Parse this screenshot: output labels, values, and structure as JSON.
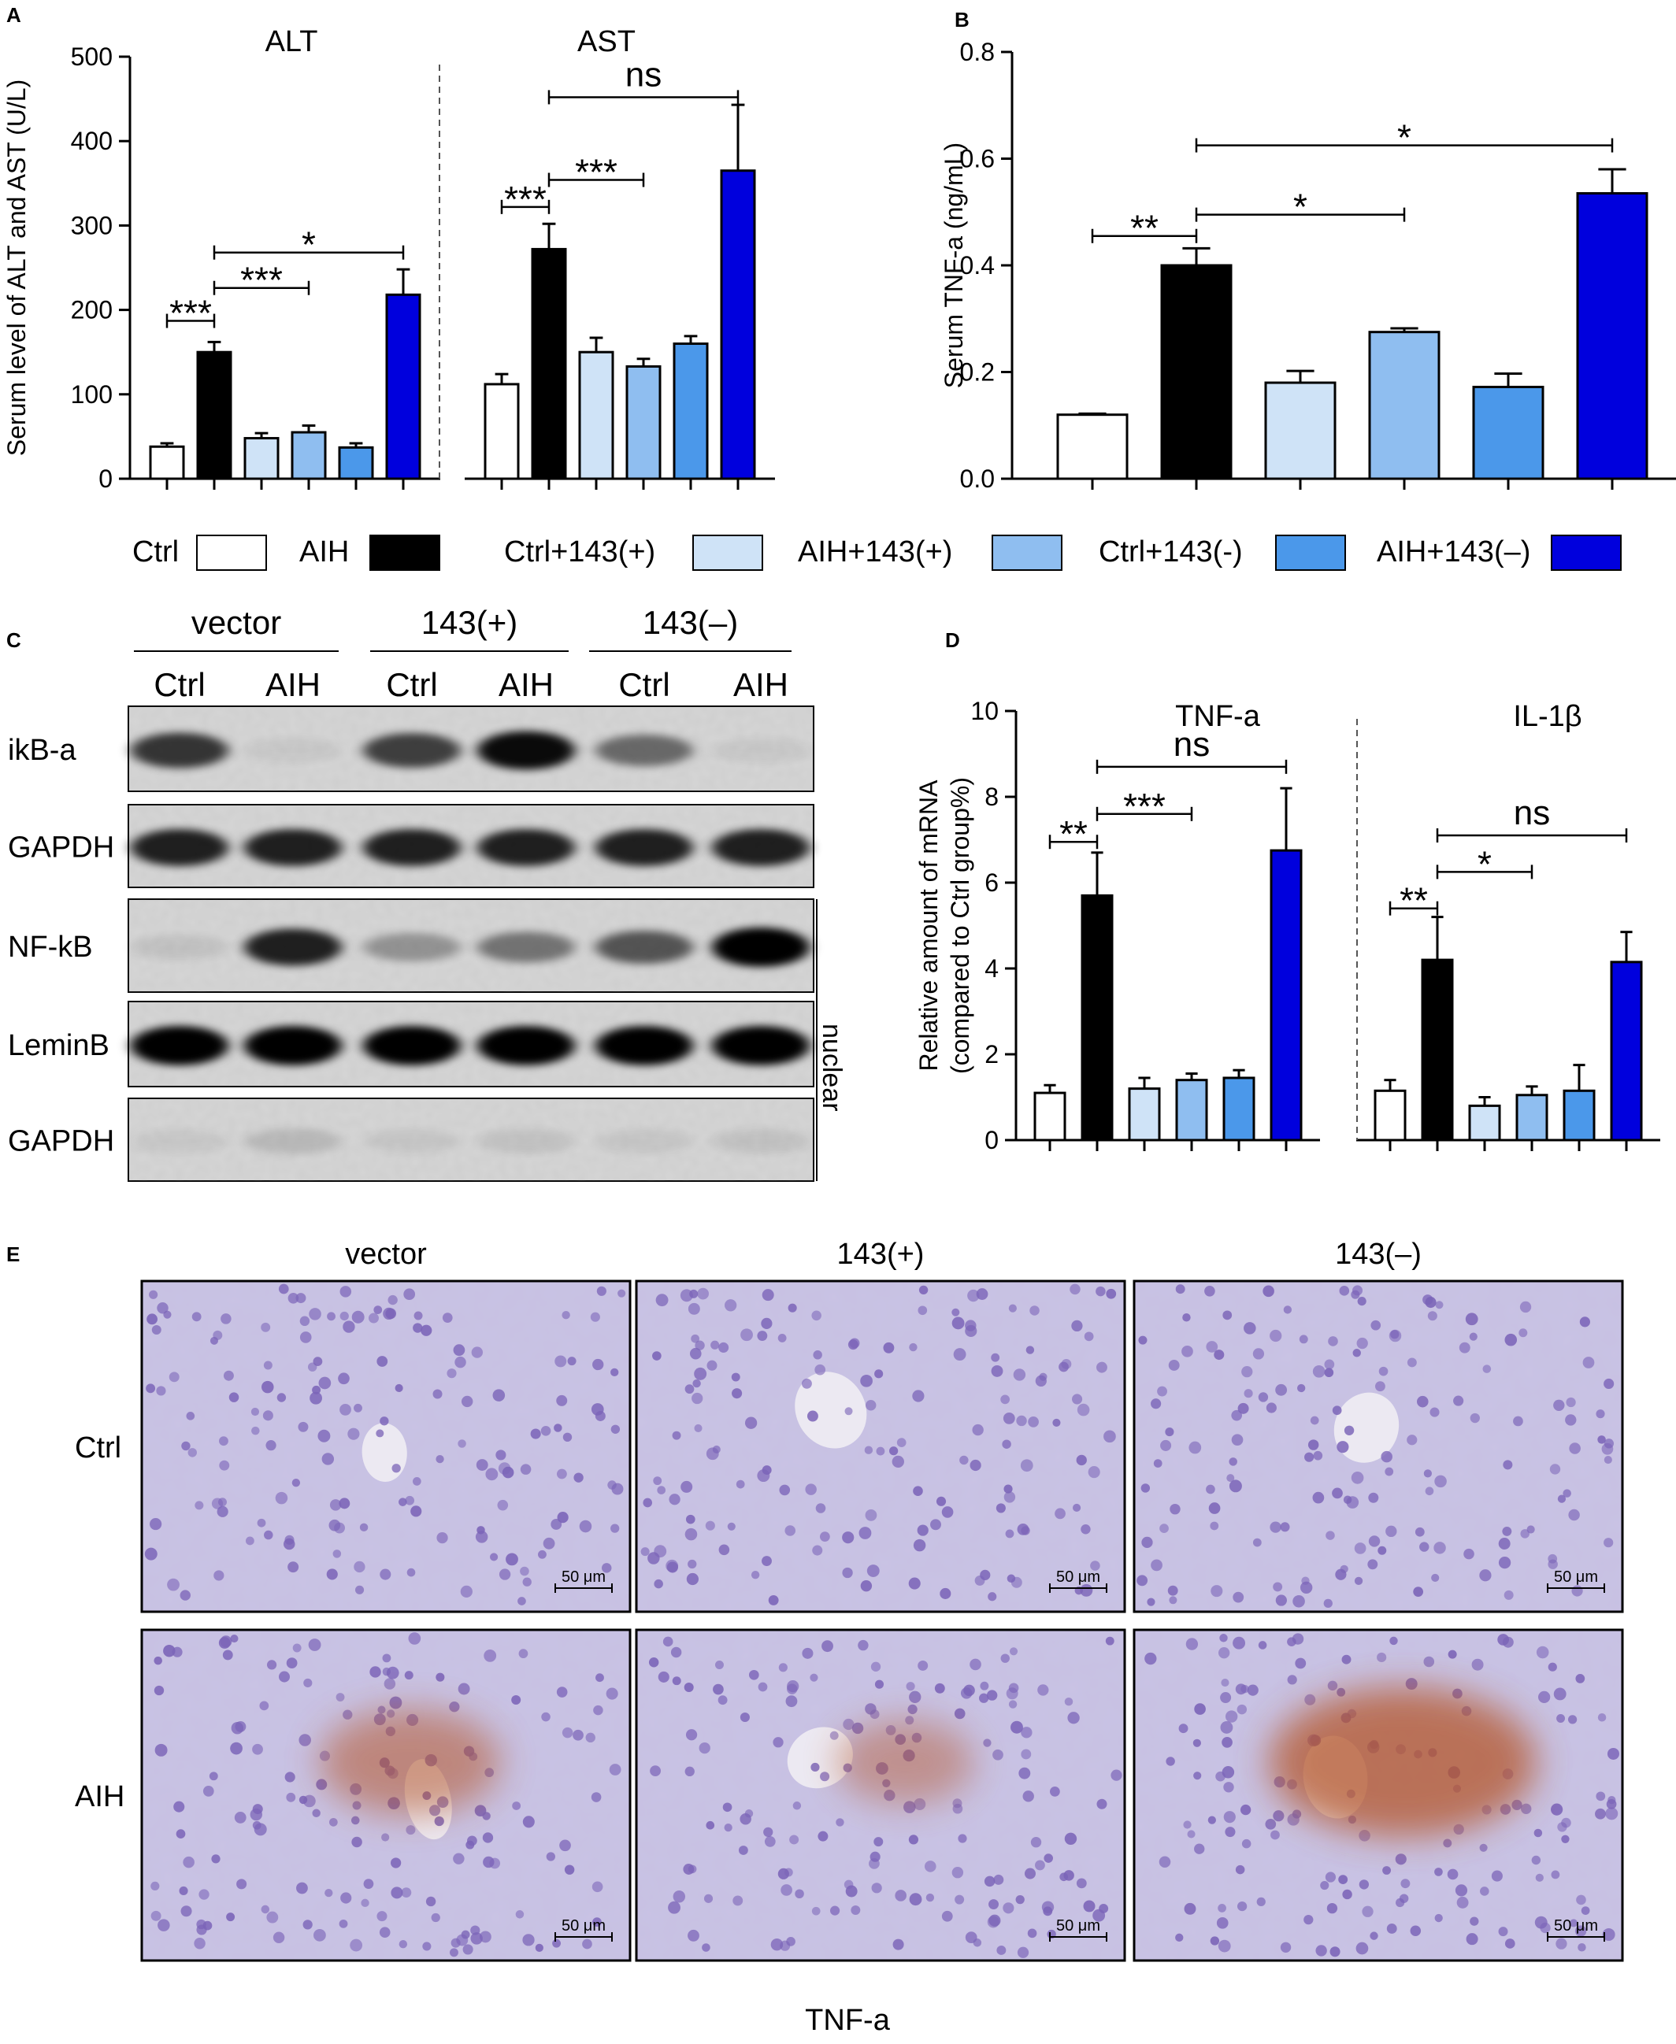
{
  "colors": {
    "ctrl": "#ffffff",
    "aih": "#000000",
    "ctrl143p": "#cfe3f7",
    "aih143p": "#8fbef0",
    "ctrl143m": "#4b98ea",
    "aih143m": "#0000dd",
    "tissue_bg": "#c9c3e4",
    "nucleus": "#7b64b8",
    "brown_stain": "#b5572a"
  },
  "panel_labels": {
    "a": "A",
    "b": "B",
    "c": "C",
    "d": "D",
    "e": "E"
  },
  "legend": [
    {
      "label": "Ctrl",
      "color": "#ffffff"
    },
    {
      "label": "AIH",
      "color": "#000000"
    },
    {
      "label": "Ctrl+143(+)",
      "color": "#cfe3f7"
    },
    {
      "label": "AIH+143(+)",
      "color": "#8fbef0"
    },
    {
      "label": "Ctrl+143(-)",
      "color": "#4b98ea"
    },
    {
      "label": "AIH+143(–)",
      "color": "#0000dd"
    }
  ],
  "chart_data": [
    {
      "id": "A",
      "type": "bar",
      "ylabel": "Serum level of ALT and AST (U/L)",
      "ylim": [
        0,
        500
      ],
      "yticks": [
        "0",
        "100",
        "200",
        "300",
        "400",
        "500"
      ],
      "groups": [
        {
          "title": "ALT",
          "values": [
            38,
            150,
            48,
            55,
            37,
            218
          ],
          "errors": [
            4,
            12,
            6,
            8,
            5,
            30
          ],
          "sig": [
            {
              "from": 0,
              "to": 1,
              "label": "***",
              "y": 187
            },
            {
              "from": 1,
              "to": 3,
              "label": "***",
              "y": 226
            },
            {
              "from": 1,
              "to": 5,
              "label": "*",
              "y": 268
            }
          ]
        },
        {
          "title": "AST",
          "values": [
            112,
            272,
            150,
            133,
            160,
            365
          ],
          "errors": [
            12,
            30,
            17,
            9,
            9,
            78
          ],
          "sig": [
            {
              "from": 0,
              "to": 1,
              "label": "***",
              "y": 322
            },
            {
              "from": 1,
              "to": 3,
              "label": "***",
              "y": 354
            },
            {
              "from": 1,
              "to": 5,
              "label": "ns",
              "y": 452
            }
          ]
        }
      ]
    },
    {
      "id": "B",
      "type": "bar",
      "ylabel": "Serum TNF-a (ng/mL)",
      "ylim": [
        0,
        0.8
      ],
      "yticks": [
        "0.0",
        "0.2",
        "0.4",
        "0.6",
        "0.8"
      ],
      "groups": [
        {
          "title": "",
          "values": [
            0.12,
            0.4,
            0.18,
            0.275,
            0.172,
            0.535
          ],
          "errors": [
            0.002,
            0.032,
            0.022,
            0.007,
            0.025,
            0.045
          ],
          "sig": [
            {
              "from": 0,
              "to": 1,
              "label": "**",
              "y": 0.455
            },
            {
              "from": 1,
              "to": 3,
              "label": "*",
              "y": 0.495
            },
            {
              "from": 1,
              "to": 5,
              "label": "*",
              "y": 0.625
            }
          ]
        }
      ]
    },
    {
      "id": "D",
      "type": "bar",
      "ylabel": "Relative amount of mRNA (compared to Ctrl group%)",
      "ylabel_lines": [
        "Relative amount of mRNA",
        "(compared to Ctrl group%)"
      ],
      "ylim": [
        0,
        10
      ],
      "yticks": [
        "0",
        "2",
        "4",
        "6",
        "8",
        "10"
      ],
      "groups": [
        {
          "title": "TNF-a",
          "values": [
            1.1,
            5.7,
            1.2,
            1.4,
            1.45,
            6.75
          ],
          "errors": [
            0.18,
            1.0,
            0.25,
            0.15,
            0.18,
            1.45
          ],
          "sig": [
            {
              "from": 0,
              "to": 1,
              "label": "**",
              "y": 6.95
            },
            {
              "from": 1,
              "to": 3,
              "label": "***",
              "y": 7.6
            },
            {
              "from": 1,
              "to": 5,
              "label": "ns",
              "y": 8.7
            }
          ]
        },
        {
          "title": "IL-1β",
          "values": [
            1.15,
            4.2,
            0.8,
            1.05,
            1.15,
            4.15
          ],
          "errors": [
            0.25,
            1.0,
            0.2,
            0.2,
            0.6,
            0.7
          ],
          "sig": [
            {
              "from": 0,
              "to": 1,
              "label": "**",
              "y": 5.4
            },
            {
              "from": 1,
              "to": 3,
              "label": "*",
              "y": 6.25
            },
            {
              "from": 1,
              "to": 5,
              "label": "ns",
              "y": 7.1
            }
          ]
        }
      ]
    }
  ],
  "western_blot": {
    "treatments": [
      "vector",
      "143(+)",
      "143(–)"
    ],
    "lanes": [
      "Ctrl",
      "AIH",
      "Ctrl",
      "AIH",
      "Ctrl",
      "AIH"
    ],
    "rows": [
      {
        "label": "ikB-a",
        "intensities": [
          0.75,
          0.05,
          0.7,
          0.95,
          0.5,
          0.05
        ]
      },
      {
        "label": "GAPDH",
        "intensities": [
          0.85,
          0.85,
          0.85,
          0.85,
          0.85,
          0.85
        ]
      },
      {
        "label": "NF-kB",
        "intensities": [
          0.08,
          0.85,
          0.3,
          0.45,
          0.6,
          1.0
        ]
      },
      {
        "label": "LeminB",
        "intensities": [
          1.0,
          1.0,
          1.0,
          1.0,
          1.0,
          1.0
        ]
      },
      {
        "label": "GAPDH",
        "intensities": [
          0.05,
          0.12,
          0.06,
          0.08,
          0.06,
          0.08
        ]
      }
    ],
    "bracket_label": "nuclear"
  },
  "histology": {
    "columns": [
      "vector",
      "143(+)",
      "143(–)"
    ],
    "rows": [
      "Ctrl",
      "AIH"
    ],
    "scale_bar": "50 μm",
    "stain_levels": [
      [
        0,
        0,
        0
      ],
      [
        0.5,
        0.25,
        1.0
      ]
    ],
    "footer": "TNF-a"
  }
}
